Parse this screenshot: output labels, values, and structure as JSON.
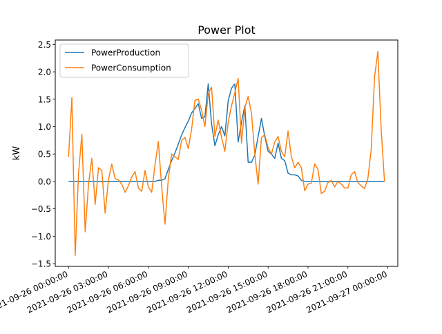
{
  "chart_data": {
    "type": "line",
    "title": "Power Plot",
    "xlabel": "",
    "ylabel": "kW",
    "x_ticks": [
      "2021-09-26 00:00:00",
      "2021-09-26 03:00:00",
      "2021-09-26 06:00:00",
      "2021-09-26 09:00:00",
      "2021-09-26 12:00:00",
      "2021-09-26 15:00:00",
      "2021-09-26 18:00:00",
      "2021-09-26 21:00:00",
      "2021-09-27 00:00:00"
    ],
    "xlim": [
      "2021-09-25 23:00:00",
      "2021-09-27 00:45:00"
    ],
    "ylim": [
      -1.55,
      2.58
    ],
    "y_ticks": [
      -1.5,
      -1.0,
      -0.5,
      0.0,
      0.5,
      1.0,
      1.5,
      2.0,
      2.5
    ],
    "grid": false,
    "legend": "top-left",
    "x": [
      "2021-09-26 00:00",
      "2021-09-26 00:15",
      "2021-09-26 00:30",
      "2021-09-26 00:45",
      "2021-09-26 01:00",
      "2021-09-26 01:15",
      "2021-09-26 01:30",
      "2021-09-26 01:45",
      "2021-09-26 02:00",
      "2021-09-26 02:15",
      "2021-09-26 02:30",
      "2021-09-26 02:45",
      "2021-09-26 03:00",
      "2021-09-26 03:15",
      "2021-09-26 03:30",
      "2021-09-26 03:45",
      "2021-09-26 04:00",
      "2021-09-26 04:15",
      "2021-09-26 04:30",
      "2021-09-26 04:45",
      "2021-09-26 05:00",
      "2021-09-26 05:15",
      "2021-09-26 05:30",
      "2021-09-26 05:45",
      "2021-09-26 06:00",
      "2021-09-26 06:15",
      "2021-09-26 06:30",
      "2021-09-26 06:45",
      "2021-09-26 07:00",
      "2021-09-26 07:15",
      "2021-09-26 07:30",
      "2021-09-26 07:45",
      "2021-09-26 08:00",
      "2021-09-26 08:15",
      "2021-09-26 08:30",
      "2021-09-26 08:45",
      "2021-09-26 09:00",
      "2021-09-26 09:15",
      "2021-09-26 09:30",
      "2021-09-26 09:45",
      "2021-09-26 10:00",
      "2021-09-26 10:15",
      "2021-09-26 10:30",
      "2021-09-26 10:45",
      "2021-09-26 11:00",
      "2021-09-26 11:15",
      "2021-09-26 11:30",
      "2021-09-26 11:45",
      "2021-09-26 12:00",
      "2021-09-26 12:15",
      "2021-09-26 12:30",
      "2021-09-26 12:45",
      "2021-09-26 13:00",
      "2021-09-26 13:15",
      "2021-09-26 13:30",
      "2021-09-26 13:45",
      "2021-09-26 14:00",
      "2021-09-26 14:15",
      "2021-09-26 14:30",
      "2021-09-26 14:45",
      "2021-09-26 15:00",
      "2021-09-26 15:15",
      "2021-09-26 15:30",
      "2021-09-26 15:45",
      "2021-09-26 16:00",
      "2021-09-26 16:15",
      "2021-09-26 16:30",
      "2021-09-26 16:45",
      "2021-09-26 17:00",
      "2021-09-26 17:15",
      "2021-09-26 17:30",
      "2021-09-26 17:45",
      "2021-09-26 18:00",
      "2021-09-26 18:15",
      "2021-09-26 18:30",
      "2021-09-26 18:45",
      "2021-09-26 19:00",
      "2021-09-26 19:15",
      "2021-09-26 19:30",
      "2021-09-26 19:45",
      "2021-09-26 20:00",
      "2021-09-26 20:15",
      "2021-09-26 20:30",
      "2021-09-26 20:45",
      "2021-09-26 21:00",
      "2021-09-26 21:15",
      "2021-09-26 21:30",
      "2021-09-26 21:45",
      "2021-09-26 22:00",
      "2021-09-26 22:15",
      "2021-09-26 22:30",
      "2021-09-26 22:45",
      "2021-09-26 23:00",
      "2021-09-26 23:15",
      "2021-09-26 23:30",
      "2021-09-26 23:45"
    ],
    "series": [
      {
        "name": "PowerProduction",
        "color": "#1f77b4",
        "values": [
          0,
          0,
          0,
          0,
          0,
          0,
          0,
          0,
          0,
          0,
          0,
          0,
          0,
          0,
          0,
          0,
          0,
          0,
          0,
          0,
          0,
          0,
          0,
          0,
          0,
          0,
          0,
          0.02,
          0.02,
          0.05,
          0.22,
          0.38,
          0.52,
          0.68,
          0.85,
          0.98,
          1.1,
          1.25,
          1.33,
          1.42,
          1.15,
          1.18,
          1.78,
          1.05,
          0.65,
          0.85,
          1.0,
          0.83,
          1.47,
          1.7,
          1.78,
          0.72,
          1.08,
          1.38,
          0.35,
          0.35,
          0.48,
          0.82,
          1.15,
          0.82,
          0.55,
          0.5,
          0.42,
          0.7,
          0.42,
          0.38,
          0.15,
          0.12,
          0.12,
          0.1,
          0.02,
          0,
          0,
          0,
          0,
          0,
          0,
          0,
          0,
          0,
          0,
          0,
          0,
          0,
          0,
          0,
          0,
          0,
          0,
          0,
          0,
          0,
          0,
          0,
          0,
          0
        ]
      },
      {
        "name": "PowerConsumption",
        "color": "#ff7f0e",
        "values": [
          0.45,
          1.53,
          -1.35,
          0.15,
          0.86,
          -0.92,
          -0.05,
          0.42,
          -0.42,
          0.25,
          0.2,
          -0.58,
          0.03,
          0.32,
          0.05,
          0.03,
          -0.05,
          -0.2,
          -0.08,
          0.08,
          0.18,
          -0.12,
          -0.18,
          0.2,
          -0.1,
          -0.2,
          0.3,
          0.73,
          -0.1,
          -0.78,
          0.05,
          0.5,
          0.45,
          0.4,
          0.75,
          0.8,
          0.6,
          0.95,
          1.48,
          1.5,
          1.3,
          1.0,
          1.6,
          1.72,
          0.82,
          1.12,
          0.8,
          0.55,
          1.08,
          1.38,
          1.62,
          1.88,
          0.7,
          1.35,
          1.55,
          1.25,
          0.5,
          -0.05,
          0.8,
          0.85,
          0.62,
          0.5,
          0.72,
          0.82,
          0.55,
          0.45,
          0.92,
          0.45,
          0.25,
          0.35,
          0.25,
          -0.17,
          -0.05,
          -0.03,
          0.32,
          0.22,
          -0.22,
          -0.18,
          -0.02,
          0.02,
          -0.1,
          0,
          -0.05,
          -0.12,
          -0.12,
          0.12,
          0.18,
          -0.02,
          -0.08,
          -0.13,
          0.05,
          0.58,
          1.9,
          2.37,
          0.95,
          0
        ]
      }
    ]
  }
}
